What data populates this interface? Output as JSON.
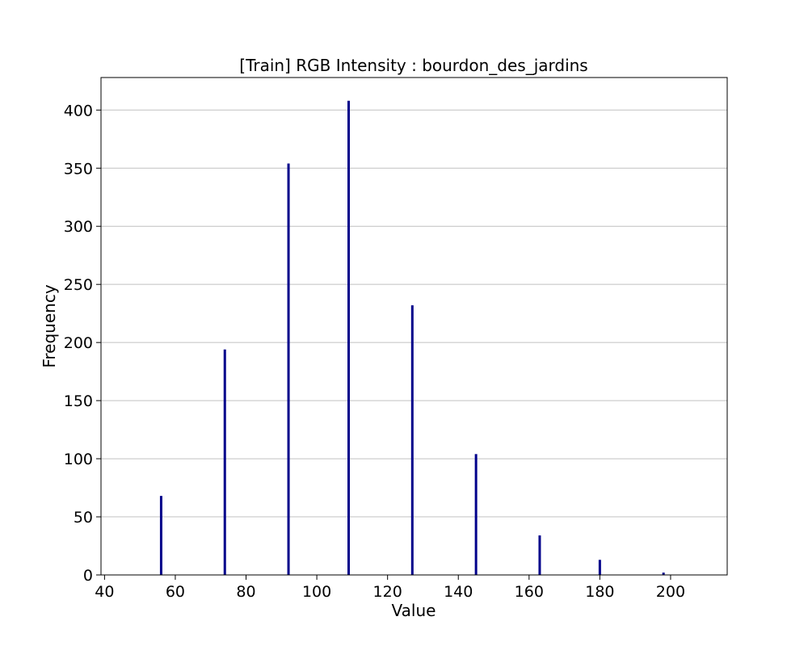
{
  "chart_data": {
    "type": "bar",
    "title": "[Train] RGB Intensity : bourdon_des_jardins",
    "xlabel": "Value",
    "ylabel": "Frequency",
    "xlim": [
      39,
      216
    ],
    "ylim": [
      0,
      428
    ],
    "xticks": [
      40,
      60,
      80,
      100,
      120,
      140,
      160,
      180,
      200
    ],
    "yticks": [
      0,
      50,
      100,
      150,
      200,
      250,
      300,
      350,
      400
    ],
    "grid": "y",
    "bar_color": "#00008b",
    "series": [
      {
        "x": [
          56,
          74,
          92,
          109,
          127,
          145,
          163,
          180,
          198
        ],
        "values": [
          68,
          194,
          354,
          408,
          232,
          104,
          34,
          13,
          2
        ]
      }
    ]
  }
}
